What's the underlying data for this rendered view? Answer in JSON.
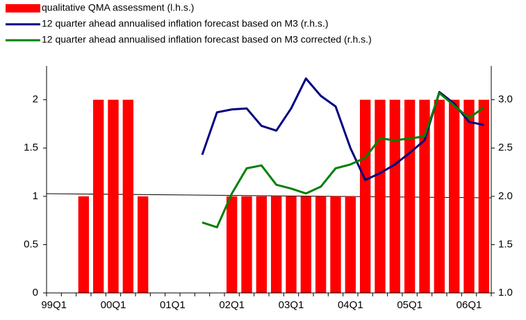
{
  "chart_data": {
    "type": "bar_line",
    "categories": [
      "99Q1",
      null,
      null,
      null,
      "00Q1",
      null,
      null,
      null,
      "01Q1",
      null,
      null,
      null,
      "02Q1",
      null,
      null,
      null,
      "03Q1",
      null,
      null,
      null,
      "04Q1",
      null,
      null,
      null,
      "05Q1",
      null,
      null,
      null,
      "06Q1",
      null
    ],
    "series": [
      {
        "name": "qualitative QMA assessment (l.h.s.)",
        "kind": "bar",
        "color": "#ff0000",
        "values": [
          0,
          0,
          1,
          2,
          2,
          2,
          1,
          0,
          0,
          0,
          0,
          0,
          1,
          1,
          1,
          1,
          1,
          1,
          1,
          1,
          1,
          2,
          2,
          2,
          2,
          2,
          2,
          2,
          2,
          2
        ]
      },
      {
        "name": "12 quarter ahead annualised inflation forecast based on M3 (r.h.s.)",
        "kind": "line",
        "axis": "y2",
        "color": "#000080",
        "values": [
          null,
          null,
          null,
          null,
          null,
          null,
          null,
          null,
          null,
          null,
          2.43,
          2.87,
          2.9,
          2.91,
          2.73,
          2.68,
          2.91,
          3.22,
          3.04,
          2.93,
          2.5,
          2.17,
          2.24,
          2.33,
          2.45,
          2.58,
          3.08,
          2.96,
          2.77,
          2.74
        ]
      },
      {
        "name": "12 quarter ahead annualised inflation forecast based on M3 corrected (r.h.s.)",
        "kind": "line",
        "axis": "y2",
        "color": "#008000",
        "values": [
          null,
          null,
          null,
          null,
          null,
          null,
          null,
          null,
          null,
          null,
          1.73,
          1.68,
          2.03,
          2.29,
          2.32,
          2.12,
          2.08,
          2.03,
          2.1,
          2.29,
          2.33,
          2.4,
          2.6,
          2.58,
          2.6,
          2.62,
          3.07,
          2.94,
          2.81,
          2.92
        ]
      }
    ],
    "ylim": [
      0,
      2.35
    ],
    "yticks": [
      0,
      0.5,
      1,
      1.5,
      2
    ],
    "y2lim": [
      1,
      3.35
    ],
    "y2ticks": [
      {
        "value": 1,
        "label": "1.0"
      },
      {
        "value": 1.5,
        "label": "1.5"
      },
      {
        "value": 2,
        "label": "2.0"
      },
      {
        "value": 2.5,
        "label": "2.5"
      },
      {
        "value": 3,
        "label": "3.0"
      }
    ]
  }
}
